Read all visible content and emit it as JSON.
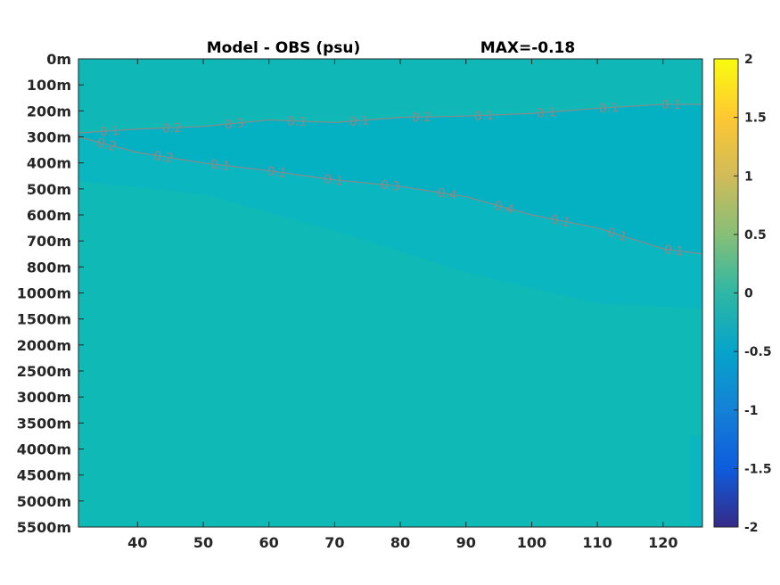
{
  "chart_data": {
    "type": "heatmap",
    "title": "Model - OBS (psu)",
    "max_label": "MAX=-0.18",
    "x": {
      "ticks": [
        40,
        50,
        60,
        70,
        80,
        90,
        100,
        110,
        120
      ],
      "range": [
        31,
        126
      ]
    },
    "y": {
      "ticks": [
        "0m",
        "100m",
        "200m",
        "300m",
        "400m",
        "500m",
        "600m",
        "700m",
        "800m",
        "1000m",
        "1500m",
        "2000m",
        "2500m",
        "3000m",
        "3500m",
        "4000m",
        "4500m",
        "5000m",
        "5500m"
      ],
      "note": "irregular depth levels, equally spaced rows"
    },
    "colorbar": {
      "ticks": [
        2,
        1.5,
        1,
        0.5,
        0,
        -0.5,
        -1,
        -1.5,
        -2
      ],
      "range": [
        -2,
        2
      ],
      "colormap": "parula"
    },
    "fill_colors": {
      "upper": "#04b1c3",
      "mid": "#0ab6bf",
      "deep": "#11b7b5",
      "background": "#0eb9b6"
    },
    "contours": [
      {
        "name": "upper",
        "labels": [
          "0.1",
          "0.2",
          "0.3",
          "0.1",
          "0.1",
          "0.2",
          "0.1",
          "0.1",
          "0.1",
          "0.1"
        ],
        "points": [
          [
            31,
            2.85
          ],
          [
            40,
            2.7
          ],
          [
            50,
            2.6
          ],
          [
            60,
            2.35
          ],
          [
            70,
            2.45
          ],
          [
            80,
            2.25
          ],
          [
            90,
            2.2
          ],
          [
            100,
            2.1
          ],
          [
            110,
            1.9
          ],
          [
            120,
            1.75
          ],
          [
            126,
            1.75
          ]
        ]
      },
      {
        "name": "lower",
        "labels": [
          "0.2",
          "0.2",
          "0.1",
          "0.1",
          "0.1",
          "0.3",
          "0.4",
          "0.4",
          "0.1",
          "0.1",
          "0.1"
        ],
        "points": [
          [
            31,
            3.0
          ],
          [
            40,
            3.6
          ],
          [
            50,
            4.0
          ],
          [
            60,
            4.3
          ],
          [
            70,
            4.65
          ],
          [
            80,
            4.9
          ],
          [
            90,
            5.3
          ],
          [
            100,
            6.0
          ],
          [
            110,
            6.5
          ],
          [
            120,
            7.3
          ],
          [
            126,
            7.5
          ]
        ]
      }
    ]
  }
}
